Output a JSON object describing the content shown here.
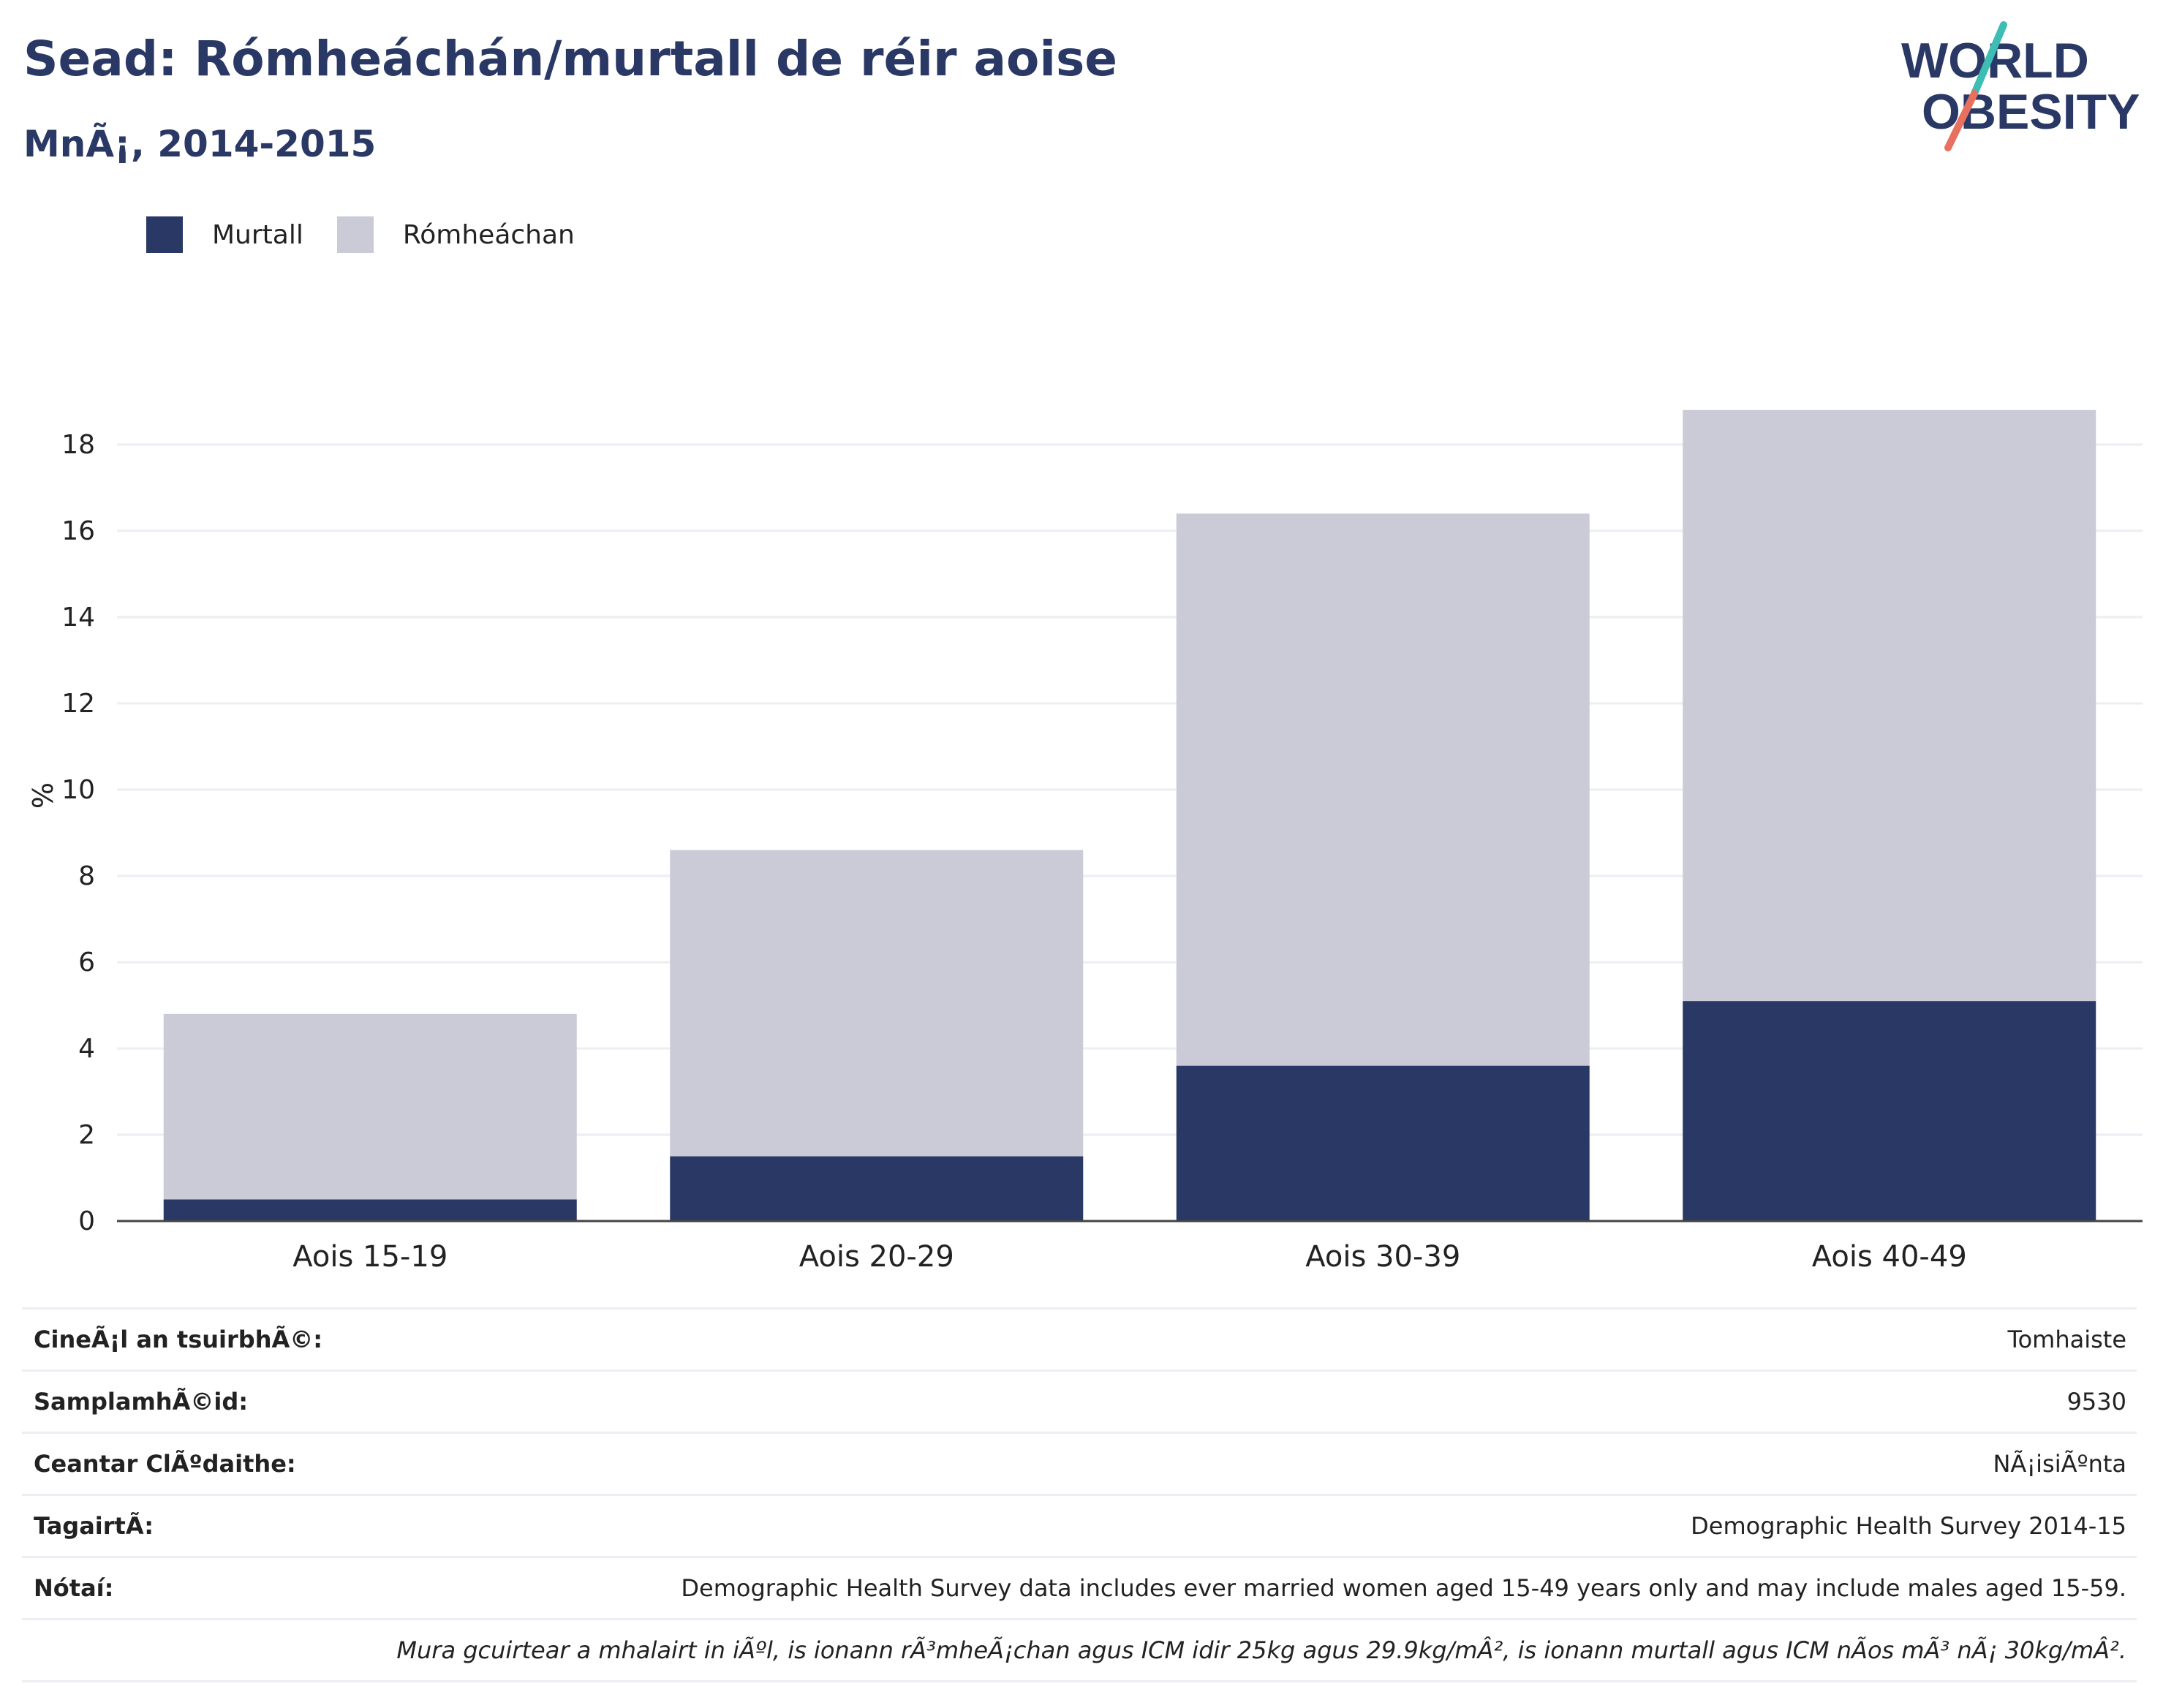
{
  "header": {
    "title": "Sead: Rómheáchán/murtall de réir aoise",
    "subtitle": "MnÃ¡, 2014-2015"
  },
  "logo": {
    "line1": "WORLD",
    "line2": "OBESITY"
  },
  "colors": {
    "obesity": "#2a3865",
    "overweight": "#cacbd7",
    "text_dark": "#2a3865",
    "grid": "#eceef3",
    "logo_teal": "#3dbdb3",
    "logo_coral": "#e8705f"
  },
  "legend": {
    "items": [
      {
        "label": "Murtall",
        "color": "#2a3865"
      },
      {
        "label": "Rómheáchan",
        "color": "#cacbd7"
      }
    ]
  },
  "chart_data": {
    "type": "bar",
    "stacked": true,
    "categories": [
      "Aois 15-19",
      "Aois 20-29",
      "Aois 30-39",
      "Aois 40-49"
    ],
    "series": [
      {
        "name": "Murtall",
        "values": [
          0.5,
          1.5,
          3.6,
          5.1
        ]
      },
      {
        "name": "Rómheáchan",
        "values": [
          4.3,
          7.1,
          12.8,
          13.7
        ]
      }
    ],
    "title": "Sead: Rómheáchán/murtall de réir aoise",
    "ylabel": "%",
    "ylim": [
      0,
      19
    ],
    "yticks": [
      0,
      2,
      4,
      6,
      8,
      10,
      12,
      14,
      16,
      18
    ],
    "grid": true,
    "legend_position": "top-left"
  },
  "info": {
    "rows": [
      {
        "label": "CineÃ¡l an tsuirbhÃ©:",
        "value": "Tomhaiste"
      },
      {
        "label": "SamplamhÃ©id:",
        "value": "9530"
      },
      {
        "label": "Ceantar ClÃºdaithe:",
        "value": "NÃ¡isiÃºnta"
      },
      {
        "label": "TagairtÃ:",
        "value": "Demographic Health Survey 2014-15"
      },
      {
        "label": "Nótaí:",
        "value": "Demographic Health Survey data includes ever married women aged 15-49 years only and may include males aged 15-59."
      }
    ],
    "footnote": "Mura gcuirtear a mhalairt in iÃºl, is ionann rÃ³mheÃ¡chan agus ICM idir 25kg agus 29.9kg/mÂ², is ionann murtall agus ICM nÃos mÃ³ nÃ¡ 30kg/mÂ²."
  }
}
